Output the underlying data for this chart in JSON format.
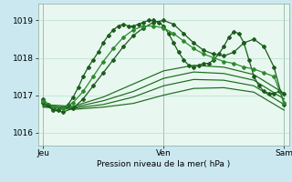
{
  "bg_color": "#cbe8f0",
  "plot_bg_color": "#e8f7f0",
  "grid_color": "#b0d8c8",
  "title": "Pression niveau de la mer( hPa )",
  "ylabel_ticks": [
    1016,
    1017,
    1018,
    1019
  ],
  "xlim": [
    0,
    50
  ],
  "ylim": [
    1015.65,
    1019.45
  ],
  "xtick_positions": [
    1,
    25,
    49
  ],
  "xtick_labels": [
    "Jeu",
    "Ven",
    "Sam"
  ],
  "series": [
    {
      "x": [
        1,
        2,
        3,
        4,
        5,
        6,
        7,
        8,
        9,
        10,
        11,
        12,
        13,
        14,
        15,
        16,
        17,
        18,
        19,
        20,
        21,
        22,
        23,
        24,
        25,
        26,
        27,
        28,
        29,
        30,
        31,
        32,
        33,
        34,
        35,
        36,
        37,
        38,
        39,
        40,
        41,
        42,
        43,
        44,
        45,
        46,
        47,
        48,
        49
      ],
      "y": [
        1016.9,
        1016.75,
        1016.65,
        1016.6,
        1016.65,
        1016.75,
        1016.95,
        1017.2,
        1017.5,
        1017.75,
        1017.95,
        1018.15,
        1018.4,
        1018.6,
        1018.75,
        1018.85,
        1018.9,
        1018.85,
        1018.85,
        1018.9,
        1018.95,
        1019.0,
        1019.0,
        1018.95,
        1018.85,
        1018.65,
        1018.4,
        1018.15,
        1017.95,
        1017.8,
        1017.75,
        1017.8,
        1017.85,
        1017.85,
        1017.95,
        1018.1,
        1018.3,
        1018.55,
        1018.7,
        1018.65,
        1018.4,
        1017.95,
        1017.5,
        1017.25,
        1017.1,
        1017.05,
        1017.05,
        1017.1,
        1017.05
      ],
      "marker": "D",
      "markersize": 2.0,
      "lw": 0.9,
      "color": "#1a5c1a"
    },
    {
      "x": [
        1,
        3,
        5,
        7,
        9,
        11,
        13,
        15,
        17,
        19,
        21,
        23,
        25,
        27,
        29,
        31,
        33,
        35,
        37,
        39,
        41,
        43,
        45,
        47,
        49
      ],
      "y": [
        1016.8,
        1016.6,
        1016.55,
        1016.65,
        1016.9,
        1017.25,
        1017.6,
        1017.95,
        1018.3,
        1018.6,
        1018.8,
        1018.95,
        1019.0,
        1018.9,
        1018.65,
        1018.4,
        1018.2,
        1018.1,
        1018.05,
        1018.15,
        1018.4,
        1018.5,
        1018.3,
        1017.75,
        1016.75
      ],
      "marker": "P",
      "markersize": 2.5,
      "lw": 0.9,
      "color": "#1a5c1a"
    },
    {
      "x": [
        1,
        3,
        5,
        7,
        9,
        11,
        13,
        15,
        17,
        19,
        21,
        23,
        25,
        27,
        29,
        31,
        33,
        35,
        37,
        39,
        41,
        43,
        45,
        47,
        49
      ],
      "y": [
        1016.85,
        1016.7,
        1016.65,
        1016.8,
        1017.1,
        1017.5,
        1017.9,
        1018.25,
        1018.55,
        1018.75,
        1018.85,
        1018.85,
        1018.8,
        1018.65,
        1018.45,
        1018.25,
        1018.1,
        1018.0,
        1017.9,
        1017.85,
        1017.75,
        1017.7,
        1017.6,
        1017.5,
        1016.8
      ],
      "marker": "D",
      "markersize": 2.0,
      "lw": 0.9,
      "color": "#2d8a2d"
    },
    {
      "x": [
        1,
        7,
        13,
        19,
        25,
        31,
        37,
        43,
        49
      ],
      "y": [
        1016.75,
        1016.7,
        1016.95,
        1017.3,
        1017.65,
        1017.8,
        1017.75,
        1017.55,
        1017.05
      ],
      "marker": null,
      "markersize": 0,
      "lw": 0.85,
      "color": "#1a6b1a"
    },
    {
      "x": [
        1,
        7,
        13,
        19,
        25,
        31,
        37,
        43,
        49
      ],
      "y": [
        1016.72,
        1016.67,
        1016.85,
        1017.1,
        1017.45,
        1017.62,
        1017.58,
        1017.4,
        1016.9
      ],
      "marker": null,
      "markersize": 0,
      "lw": 0.85,
      "color": "#1a6b1a"
    },
    {
      "x": [
        1,
        7,
        13,
        19,
        25,
        31,
        37,
        43,
        49
      ],
      "y": [
        1016.7,
        1016.65,
        1016.75,
        1016.95,
        1017.25,
        1017.42,
        1017.4,
        1017.25,
        1016.75
      ],
      "marker": null,
      "markersize": 0,
      "lw": 0.85,
      "color": "#1a6b1a"
    },
    {
      "x": [
        1,
        7,
        13,
        19,
        25,
        31,
        37,
        43,
        49
      ],
      "y": [
        1016.68,
        1016.62,
        1016.68,
        1016.78,
        1017.0,
        1017.18,
        1017.2,
        1017.08,
        1016.6
      ],
      "marker": null,
      "markersize": 0,
      "lw": 0.85,
      "color": "#1a6b1a"
    }
  ],
  "vline_positions": [
    1,
    25,
    49
  ],
  "vline_color": "#7a9a8a"
}
